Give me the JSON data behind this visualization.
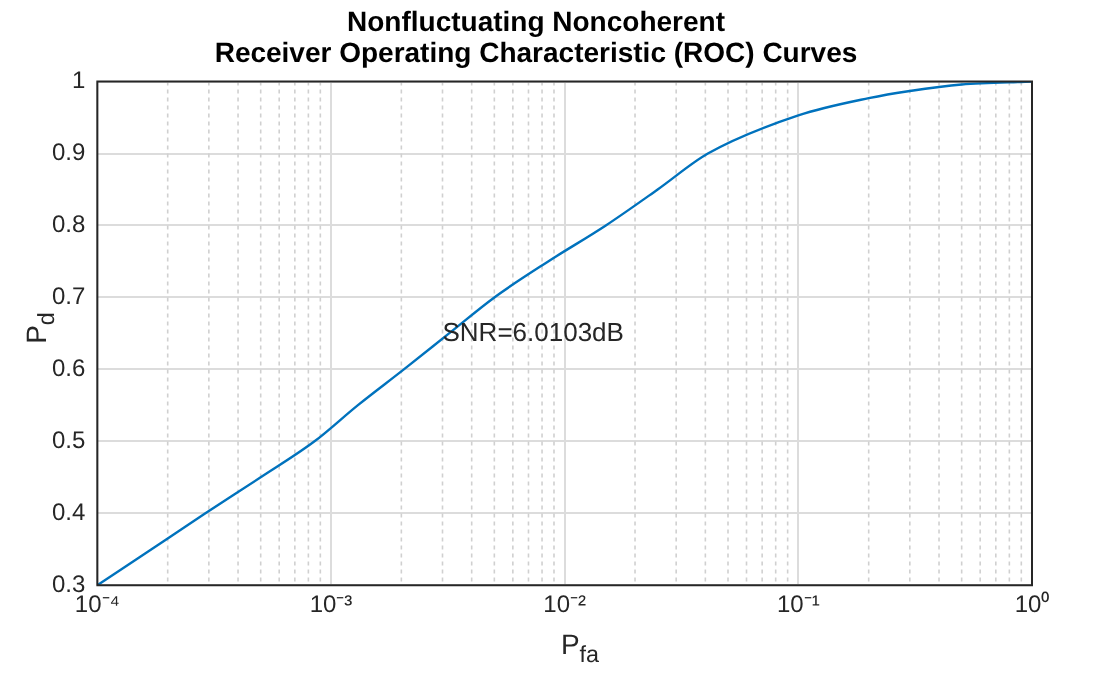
{
  "chart_data": {
    "type": "line",
    "title": "Nonfluctuating Noncoherent\nReceiver Operating Characteristic (ROC) Curves",
    "xlabel": "P$_{fa}$",
    "ylabel": "P$_{d}$",
    "x": [
      0.0001,
      0.0002,
      0.00029,
      0.0005,
      0.00085,
      0.0013,
      0.00205,
      0.0032,
      0.005,
      0.0085,
      0.015,
      0.025,
      0.041,
      0.1,
      0.2,
      0.3,
      0.5,
      1
    ],
    "series": [
      {
        "color": "#0072bd",
        "values": [
          0.3,
          0.365,
          0.4,
          0.45,
          0.5,
          0.55,
          0.6,
          0.65,
          0.7,
          0.75,
          0.8,
          0.85,
          0.9,
          0.953,
          0.977,
          0.987,
          0.996,
          1.0
        ]
      }
    ],
    "log": "x",
    "xlim": [
      0.0001,
      1
    ],
    "ylim": [
      0.3,
      1
    ],
    "xticks": [
      {
        "value": 0.0001,
        "label": "10⁻⁴"
      },
      {
        "value": 0.001,
        "label": "10⁻³"
      },
      {
        "value": 0.01,
        "label": "10⁻²"
      },
      {
        "value": 0.1,
        "label": "10⁻¹"
      },
      {
        "value": 1,
        "label": "10⁰"
      }
    ],
    "yticks": [
      0.3,
      0.4,
      0.5,
      0.6,
      0.7,
      0.8,
      0.9,
      1
    ],
    "annotations": [
      {
        "text": "SNR=6.0103dB",
        "x": 0.003,
        "y": 0.65
      }
    ],
    "grid": true,
    "legend": false,
    "marker": "none",
    "line_style": "solid"
  }
}
